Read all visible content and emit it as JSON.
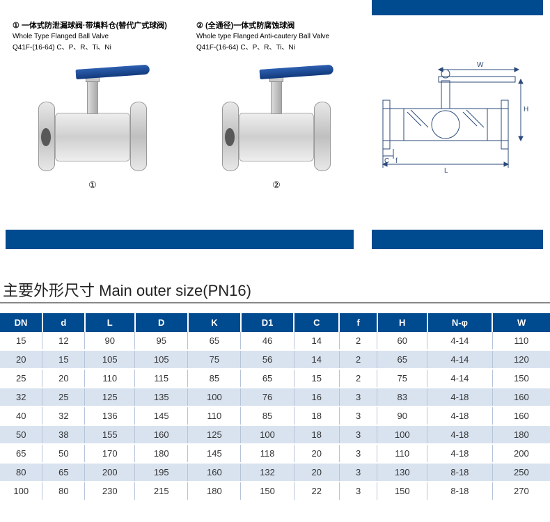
{
  "top_bar_color": "#004a8f",
  "products": [
    {
      "num": "①",
      "cn": "一体式防泄漏球阀·带填料仓(替代广式球阀)",
      "en": "Whole Type Flanged Ball Valve",
      "code": "Q41F-(16-64) C、P、R、Ti、Ni",
      "label": "①"
    },
    {
      "num": "②",
      "cn": "(全通径)一体式防腐蚀球阀",
      "en": "Whole type Flanged Anti-cautery Ball Valve",
      "code": "Q41F-(16-64) C、P、R、Ti、Ni",
      "label": "②"
    }
  ],
  "tech_drawing": {
    "line_color": "#2b4a7a",
    "labels": {
      "W": "W",
      "H": "H",
      "L": "L",
      "C": "C",
      "f": "f"
    }
  },
  "section_title": "主要外形尺寸 Main outer size(PN16)",
  "table": {
    "header_bg": "#004a8f",
    "header_fg": "#ffffff",
    "row_alt_bg": "#d9e3f0",
    "columns": [
      "DN",
      "d",
      "L",
      "D",
      "K",
      "D1",
      "C",
      "f",
      "H",
      "N-φ",
      "W"
    ],
    "rows": [
      [
        "15",
        "12",
        "90",
        "95",
        "65",
        "46",
        "14",
        "2",
        "60",
        "4-14",
        "110"
      ],
      [
        "20",
        "15",
        "105",
        "105",
        "75",
        "56",
        "14",
        "2",
        "65",
        "4-14",
        "120"
      ],
      [
        "25",
        "20",
        "110",
        "115",
        "85",
        "65",
        "15",
        "2",
        "75",
        "4-14",
        "150"
      ],
      [
        "32",
        "25",
        "125",
        "135",
        "100",
        "76",
        "16",
        "3",
        "83",
        "4-18",
        "160"
      ],
      [
        "40",
        "32",
        "136",
        "145",
        "110",
        "85",
        "18",
        "3",
        "90",
        "4-18",
        "160"
      ],
      [
        "50",
        "38",
        "155",
        "160",
        "125",
        "100",
        "18",
        "3",
        "100",
        "4-18",
        "180"
      ],
      [
        "65",
        "50",
        "170",
        "180",
        "145",
        "118",
        "20",
        "3",
        "110",
        "4-18",
        "200"
      ],
      [
        "80",
        "65",
        "200",
        "195",
        "160",
        "132",
        "20",
        "3",
        "130",
        "8-18",
        "250"
      ],
      [
        "100",
        "80",
        "230",
        "215",
        "180",
        "150",
        "22",
        "3",
        "150",
        "8-18",
        "270"
      ]
    ]
  }
}
